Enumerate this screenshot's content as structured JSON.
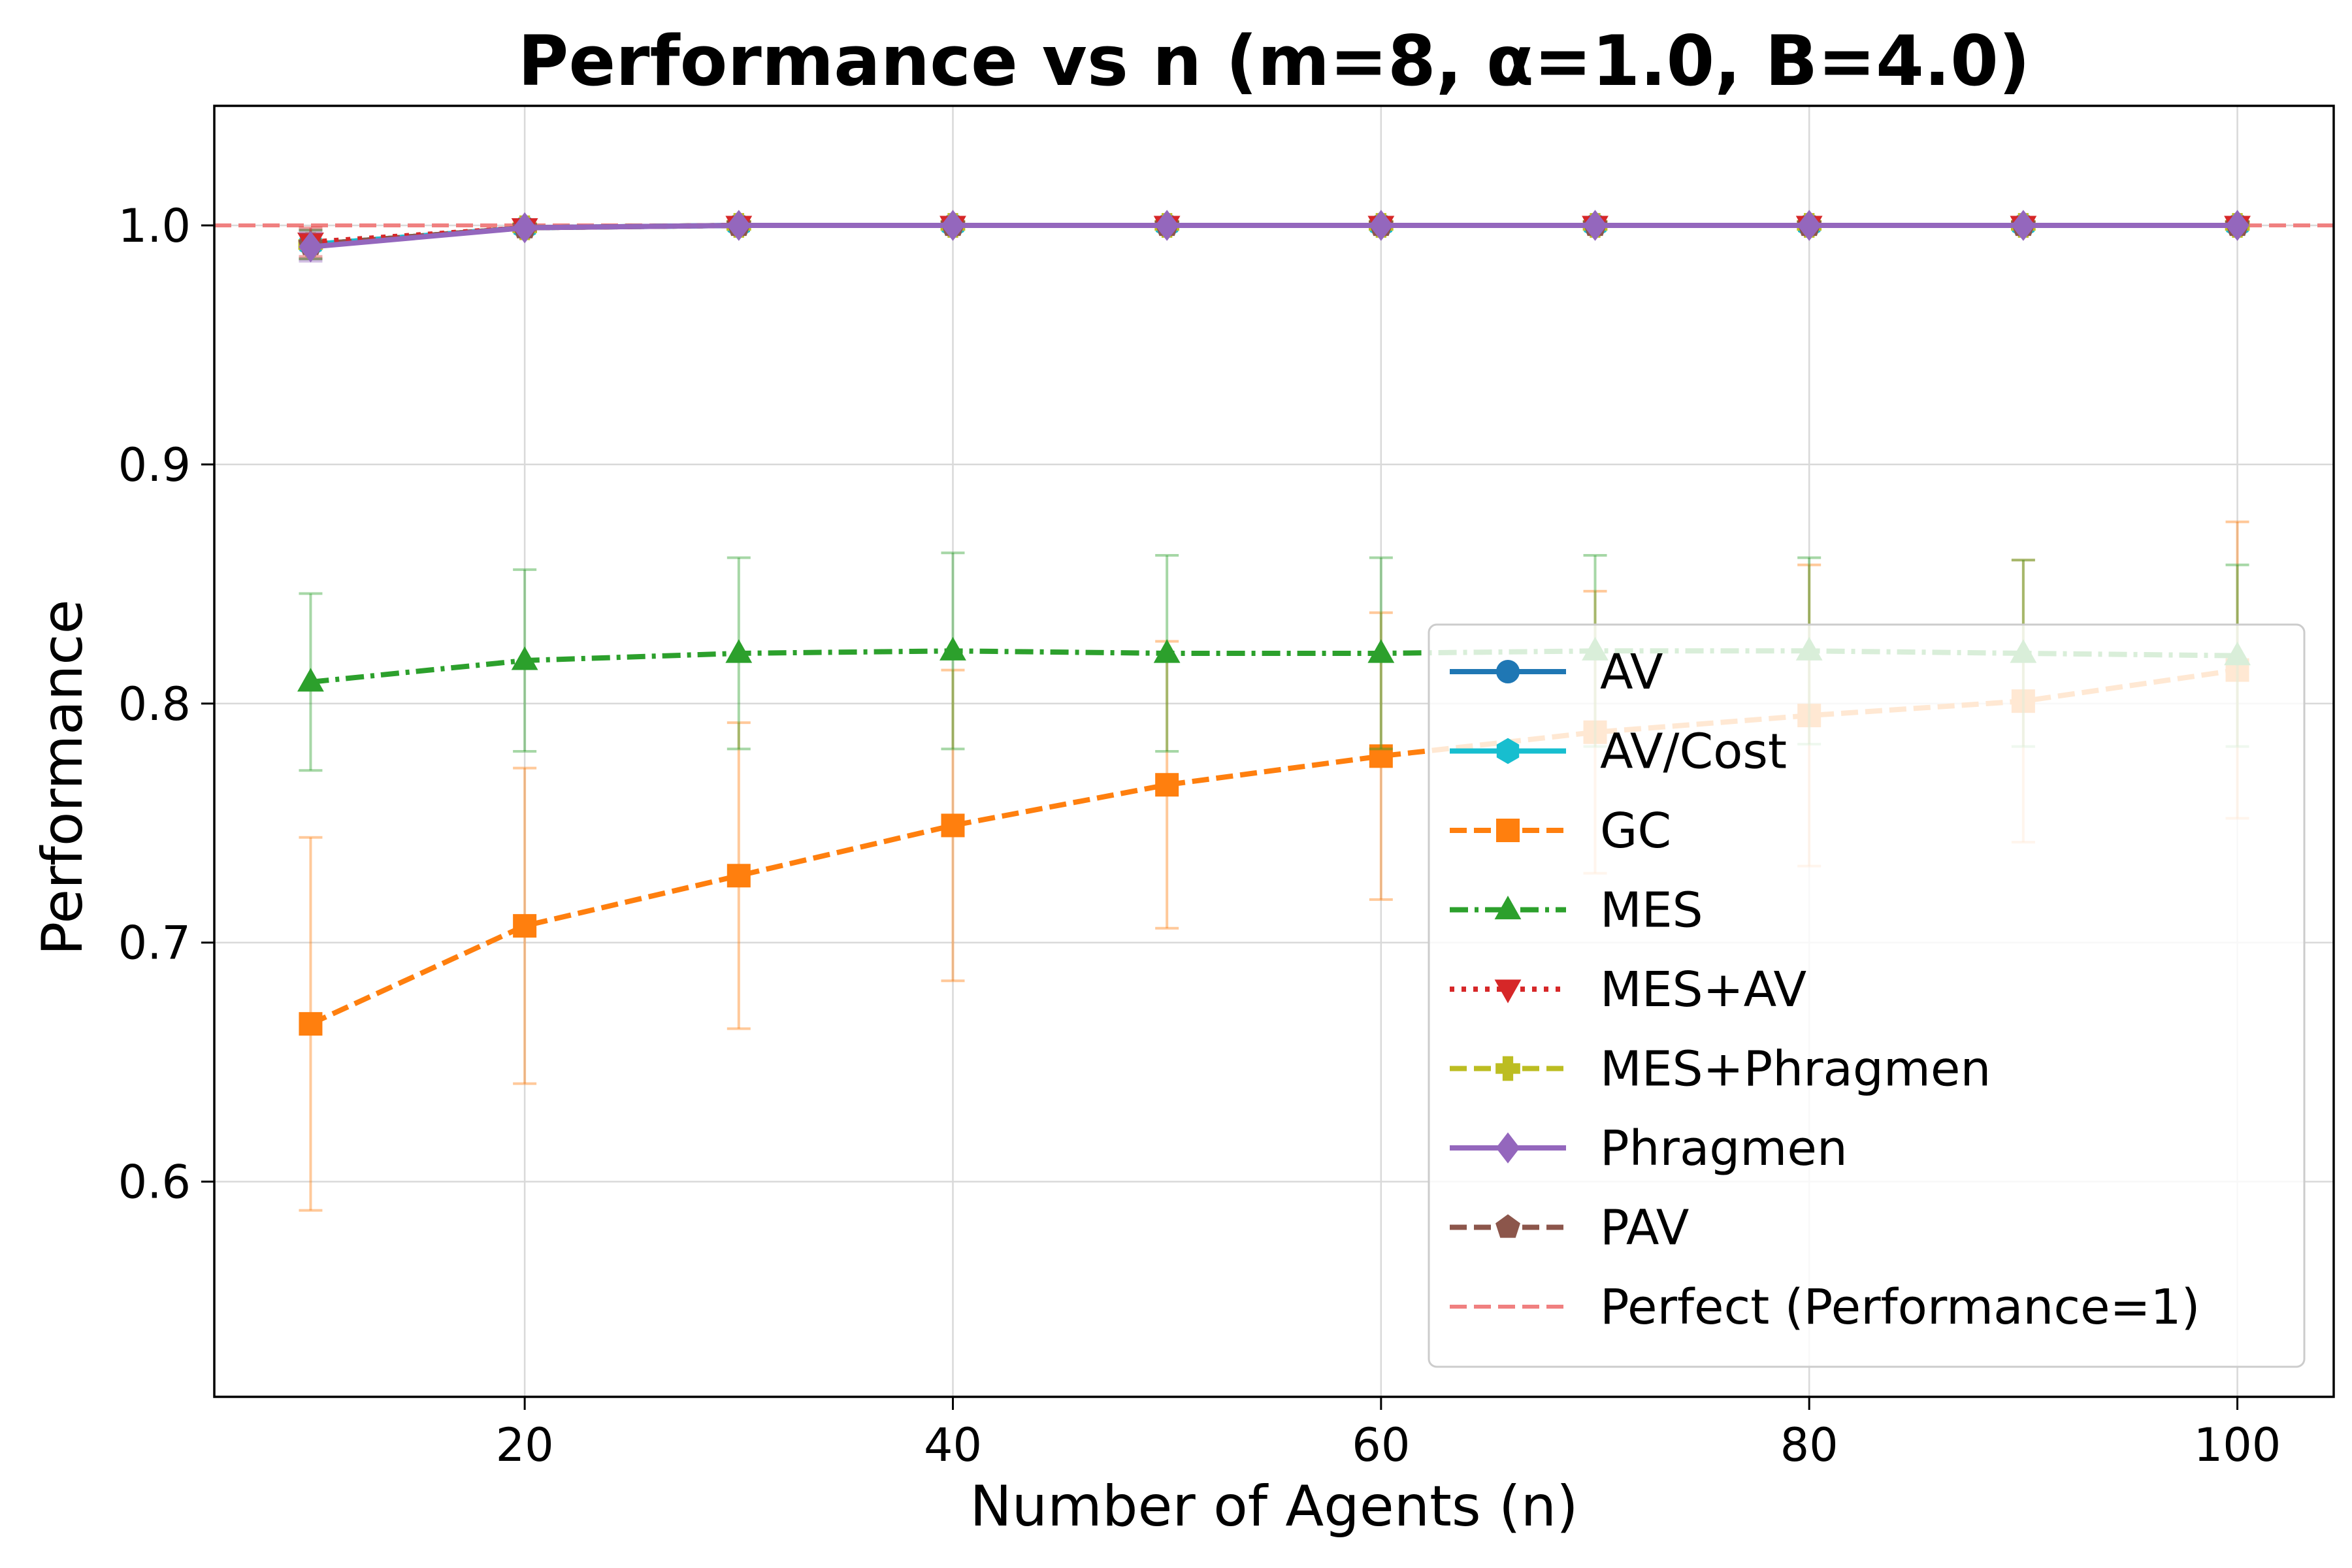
{
  "chart_data": {
    "type": "line",
    "title": "Performance vs n (m=8, α=1.0, B=4.0)",
    "xlabel": "Number of Agents (n)",
    "ylabel": "Performance",
    "xlim": [
      5.5,
      104.5
    ],
    "ylim": [
      0.51,
      1.05
    ],
    "xticks": [
      20,
      40,
      60,
      80,
      100
    ],
    "yticks": [
      0.6,
      0.7,
      0.8,
      0.9,
      1.0
    ],
    "ytick_labels": [
      "0.6",
      "0.7",
      "0.8",
      "0.9",
      "1.0"
    ],
    "grid": true,
    "legend_position": "lower right",
    "x": [
      10,
      20,
      30,
      40,
      50,
      60,
      70,
      80,
      90,
      100
    ],
    "reference_line": {
      "label": "Perfect (Performance=1)",
      "y": 1.0,
      "color": "#f08080"
    },
    "series": [
      {
        "name": "AV",
        "color": "#1f77b4",
        "dash": "solid",
        "marker": "circle",
        "values": [
          0.992,
          0.999,
          1.0,
          1.0,
          1.0,
          1.0,
          1.0,
          1.0,
          1.0,
          1.0
        ],
        "errors": [
          0.006,
          0.001,
          0,
          0,
          0,
          0,
          0,
          0,
          0,
          0
        ]
      },
      {
        "name": "AV/Cost",
        "color": "#17becf",
        "dash": "solid",
        "marker": "hexagon",
        "values": [
          0.992,
          0.999,
          1.0,
          1.0,
          1.0,
          1.0,
          1.0,
          1.0,
          1.0,
          1.0
        ],
        "errors": [
          0.006,
          0.001,
          0,
          0,
          0,
          0,
          0,
          0,
          0,
          0
        ]
      },
      {
        "name": "GC",
        "color": "#ff7f0e",
        "dash": "dashed",
        "marker": "square",
        "values": [
          0.666,
          0.707,
          0.728,
          0.749,
          0.766,
          0.778,
          0.788,
          0.795,
          0.801,
          0.814
        ],
        "errors": [
          0.078,
          0.066,
          0.064,
          0.065,
          0.06,
          0.06,
          0.059,
          0.063,
          0.059,
          0.062
        ]
      },
      {
        "name": "MES",
        "color": "#2ca02c",
        "dash": "dashdot",
        "marker": "triangle-up",
        "values": [
          0.809,
          0.818,
          0.821,
          0.822,
          0.821,
          0.821,
          0.822,
          0.822,
          0.821,
          0.82
        ],
        "errors": [
          0.037,
          0.038,
          0.04,
          0.041,
          0.041,
          0.04,
          0.04,
          0.039,
          0.039,
          0.038
        ]
      },
      {
        "name": "MES+AV",
        "color": "#d62728",
        "dash": "dotted",
        "marker": "triangle-down",
        "values": [
          0.993,
          0.999,
          1.0,
          1.0,
          1.0,
          1.0,
          1.0,
          1.0,
          1.0,
          1.0
        ],
        "errors": [
          0.006,
          0.001,
          0,
          0,
          0,
          0,
          0,
          0,
          0,
          0
        ]
      },
      {
        "name": "MES+Phragmen",
        "color": "#bcbd22",
        "dash": "dashed",
        "marker": "plus",
        "values": [
          0.992,
          0.999,
          1.0,
          1.0,
          1.0,
          1.0,
          1.0,
          1.0,
          1.0,
          1.0
        ],
        "errors": [
          0.006,
          0.001,
          0,
          0,
          0,
          0,
          0,
          0,
          0,
          0
        ]
      },
      {
        "name": "Phragmen",
        "color": "#9467bd",
        "dash": "solid",
        "marker": "diamond",
        "values": [
          0.991,
          0.999,
          1.0,
          1.0,
          1.0,
          1.0,
          1.0,
          1.0,
          1.0,
          1.0
        ],
        "errors": [
          0.006,
          0.001,
          0,
          0,
          0,
          0,
          0,
          0,
          0,
          0
        ]
      },
      {
        "name": "PAV",
        "color": "#8c564b",
        "dash": "dashed",
        "marker": "pentagon",
        "values": [
          0.992,
          0.999,
          1.0,
          1.0,
          1.0,
          1.0,
          1.0,
          1.0,
          1.0,
          1.0
        ],
        "errors": [
          0.006,
          0.001,
          0,
          0,
          0,
          0,
          0,
          0,
          0,
          0
        ]
      }
    ]
  }
}
